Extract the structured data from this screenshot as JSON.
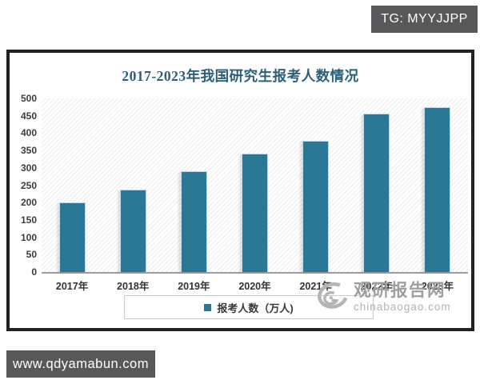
{
  "page": {
    "telegram_badge": "TG: MYYJJPP",
    "site_badge": "www.qdyamabun.com"
  },
  "watermark": {
    "name": "观研报告网",
    "url": "chinabaogao.com",
    "icon": "swirl-logo-icon"
  },
  "chart_data": {
    "type": "bar",
    "title": "2017-2023年我国研究生报考人数情况",
    "categories": [
      "2017年",
      "2018年",
      "2019年",
      "2020年",
      "2021年",
      "2022年",
      "2023年"
    ],
    "values": [
      201,
      238,
      290,
      341,
      377,
      457,
      474
    ],
    "legend": "报考人数（万人)",
    "xlabel": "",
    "ylabel": "",
    "ylim": [
      0,
      500
    ],
    "ytick_step": 50,
    "grid": false,
    "legend_position": "bottom",
    "plot_background": "diagonal-hatch"
  },
  "colors": {
    "bar": "#2b7796",
    "bar_edge": "#bcdde9",
    "title": "#2c5f78",
    "badge_bg": "#58585a",
    "chart_border": "#212121",
    "axis": "#9e9e9e",
    "watermark": "#9f9f9f"
  }
}
